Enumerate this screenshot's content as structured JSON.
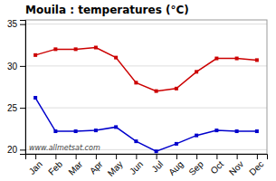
{
  "chart_data": {
    "type": "line",
    "title": "Mouila : temperatures (°C)",
    "categories": [
      "Jan",
      "Feb",
      "Mar",
      "Apr",
      "May",
      "Jun",
      "Jul",
      "Aug",
      "Sep",
      "Oct",
      "Nov",
      "Dec"
    ],
    "series": [
      {
        "color": "#cc0000",
        "marker": "square",
        "values": [
          31.3,
          32.0,
          32.0,
          32.2,
          31.0,
          28.0,
          27.0,
          27.3,
          29.3,
          30.9,
          30.9,
          30.7
        ]
      },
      {
        "color": "#0000cc",
        "marker": "square",
        "values": [
          26.2,
          22.2,
          22.2,
          22.3,
          22.7,
          21.0,
          19.8,
          20.7,
          21.7,
          22.3,
          22.2,
          22.2
        ]
      }
    ],
    "ylim": [
      19.5,
      35.5
    ],
    "yticks": [
      20,
      25,
      30,
      35
    ],
    "grid": true,
    "annotations": [
      "www.allmetsat.com"
    ]
  }
}
